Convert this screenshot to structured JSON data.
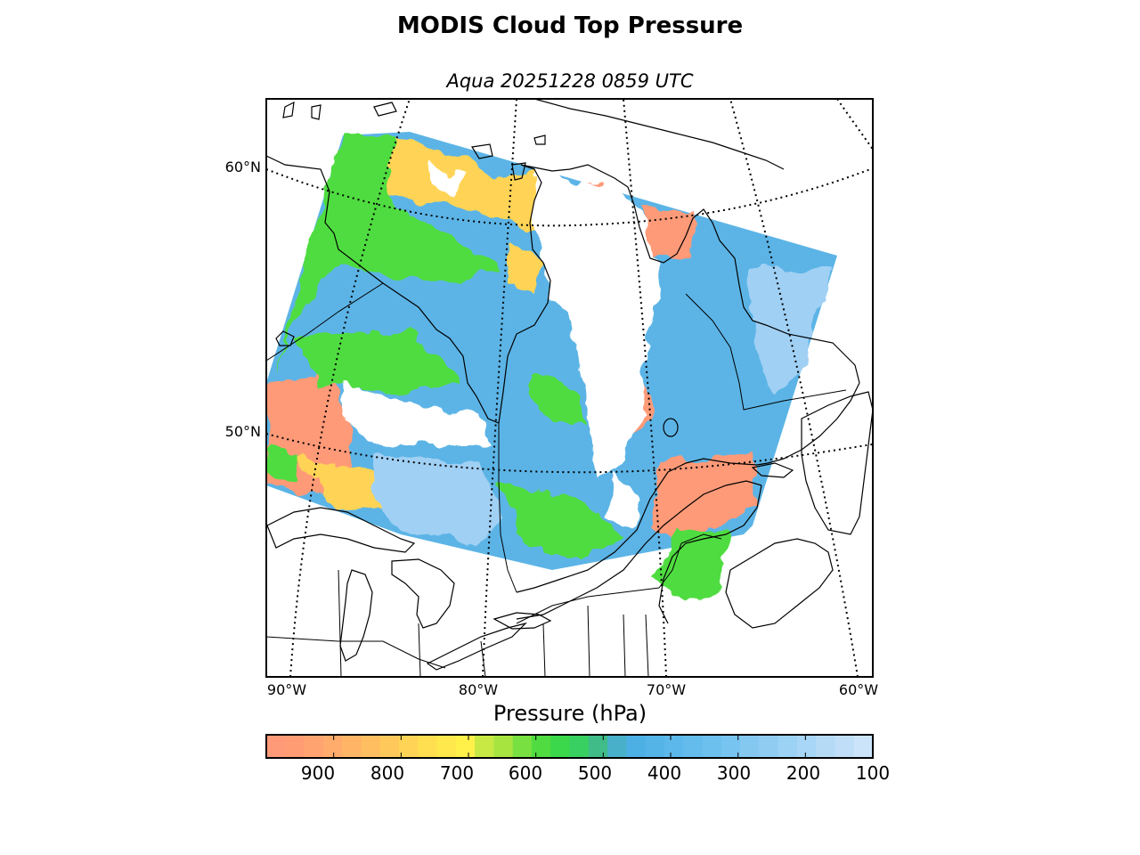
{
  "title": "MODIS Cloud Top Pressure",
  "subtitle": "Aqua 20251228 0859 UTC",
  "map": {
    "lat_labels": [
      "60°N",
      "50°N"
    ],
    "lon_labels": [
      "90°W",
      "80°W",
      "70°W",
      "60°W"
    ]
  },
  "colorbar": {
    "title": "Pressure (hPa)",
    "range": [
      1000,
      100
    ],
    "ticks": [
      "900",
      "800",
      "700",
      "600",
      "500",
      "400",
      "300",
      "200",
      "100"
    ],
    "colors": [
      "#ff9a78",
      "#ff9c74",
      "#ffa470",
      "#ffac6c",
      "#ffb466",
      "#ffbe60",
      "#ffc85a",
      "#ffd456",
      "#ffde50",
      "#ffe84c",
      "#fff04a",
      "#c8e844",
      "#a8e440",
      "#78e040",
      "#50dc40",
      "#3ad84a",
      "#38d060",
      "#40bc88",
      "#48b0c8",
      "#4cb0e4",
      "#54b4e8",
      "#5cb8ea",
      "#64bcec",
      "#6cc0ee",
      "#78c4f0",
      "#84c8f0",
      "#90ccf2",
      "#9cd2f4",
      "#a8d6f6",
      "#b4daf6",
      "#c0def8",
      "#cce4fa"
    ]
  },
  "colors": {
    "low_cloud": "#ff9a78",
    "mid_low_cloud": "#ffd456",
    "mid_cloud": "#50dc40",
    "high_cloud": "#5cb4e6",
    "very_high_cloud": "#a0d0f4"
  }
}
